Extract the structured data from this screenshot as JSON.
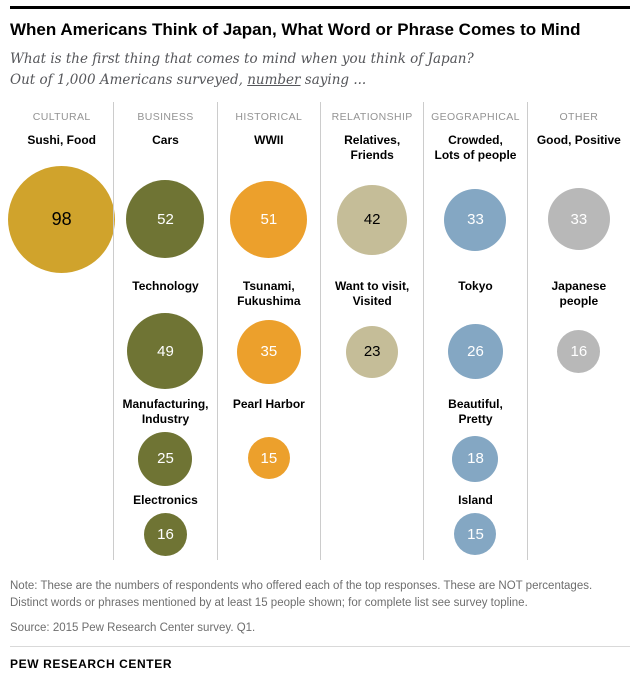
{
  "header": {
    "title": "When Americans Think of Japan, What Word or Phrase Comes to Mind",
    "subtitle_line1": "What is the first thing that comes to mind when you think of Japan?",
    "subtitle_line2_prefix": "Out of 1,000 Americans surveyed, ",
    "subtitle_line2_underlined": "number",
    "subtitle_line2_suffix": " saying ..."
  },
  "chart_data": {
    "type": "bubble",
    "title": "When Americans Think of Japan, What Word or Phrase Comes to Mind",
    "value_unit": "number of respondents out of 1,000 Americans surveyed",
    "layout": "6 category columns separated by vertical divider lines; bubble area proportional to value; value label centered inside each bubble",
    "columns": [
      {
        "header": "CULTURAL",
        "color": "#d0a32c",
        "text_color": "#000000",
        "bubbles": [
          {
            "label": "Sushi, Food",
            "value": 98,
            "row": 0
          }
        ]
      },
      {
        "header": "BUSINESS",
        "color": "#6f7434",
        "text_color": "#ffffff",
        "bubbles": [
          {
            "label": "Cars",
            "value": 52,
            "row": 0
          },
          {
            "label": "Technology",
            "value": 49,
            "row": 1
          },
          {
            "label": "Manufacturing,\nIndustry",
            "value": 25,
            "row": 2
          },
          {
            "label": "Electronics",
            "value": 16,
            "row": 3
          }
        ]
      },
      {
        "header": "HISTORICAL",
        "color": "#eca02c",
        "text_color": "#ffffff",
        "bubbles": [
          {
            "label": "WWII",
            "value": 51,
            "row": 0
          },
          {
            "label": "Tsunami,\nFukushima",
            "value": 35,
            "row": 1
          },
          {
            "label": "Pearl Harbor",
            "value": 15,
            "row": 2
          }
        ]
      },
      {
        "header": "RELATIONSHIP",
        "color": "#c5bd98",
        "text_color": "#000000",
        "bubbles": [
          {
            "label": "Relatives, Friends",
            "value": 42,
            "row": 0
          },
          {
            "label": "Want to visit,\nVisited",
            "value": 23,
            "row": 1
          }
        ]
      },
      {
        "header": "GEOGRAPHICAL",
        "color": "#84a7c3",
        "text_color": "#ffffff",
        "bubbles": [
          {
            "label": "Crowded,\nLots of people",
            "value": 33,
            "row": 0
          },
          {
            "label": "Tokyo",
            "value": 26,
            "row": 1
          },
          {
            "label": "Beautiful,\nPretty",
            "value": 18,
            "row": 2
          },
          {
            "label": "Island",
            "value": 15,
            "row": 3
          }
        ]
      },
      {
        "header": "OTHER",
        "color": "#b8b8b8",
        "text_color": "#ffffff",
        "bubbles": [
          {
            "label": "Good, Positive",
            "value": 33,
            "row": 0
          },
          {
            "label": "Japanese\npeople",
            "value": 16,
            "row": 1
          }
        ]
      }
    ]
  },
  "footer": {
    "note": "Note: These are the numbers of respondents who offered each of the top responses. These are NOT percentages. Distinct words or phrases mentioned by at least 15 people shown; for complete list see survey topline.",
    "source": "Source: 2015 Pew Research Center survey. Q1.",
    "brand": "PEW RESEARCH CENTER"
  }
}
